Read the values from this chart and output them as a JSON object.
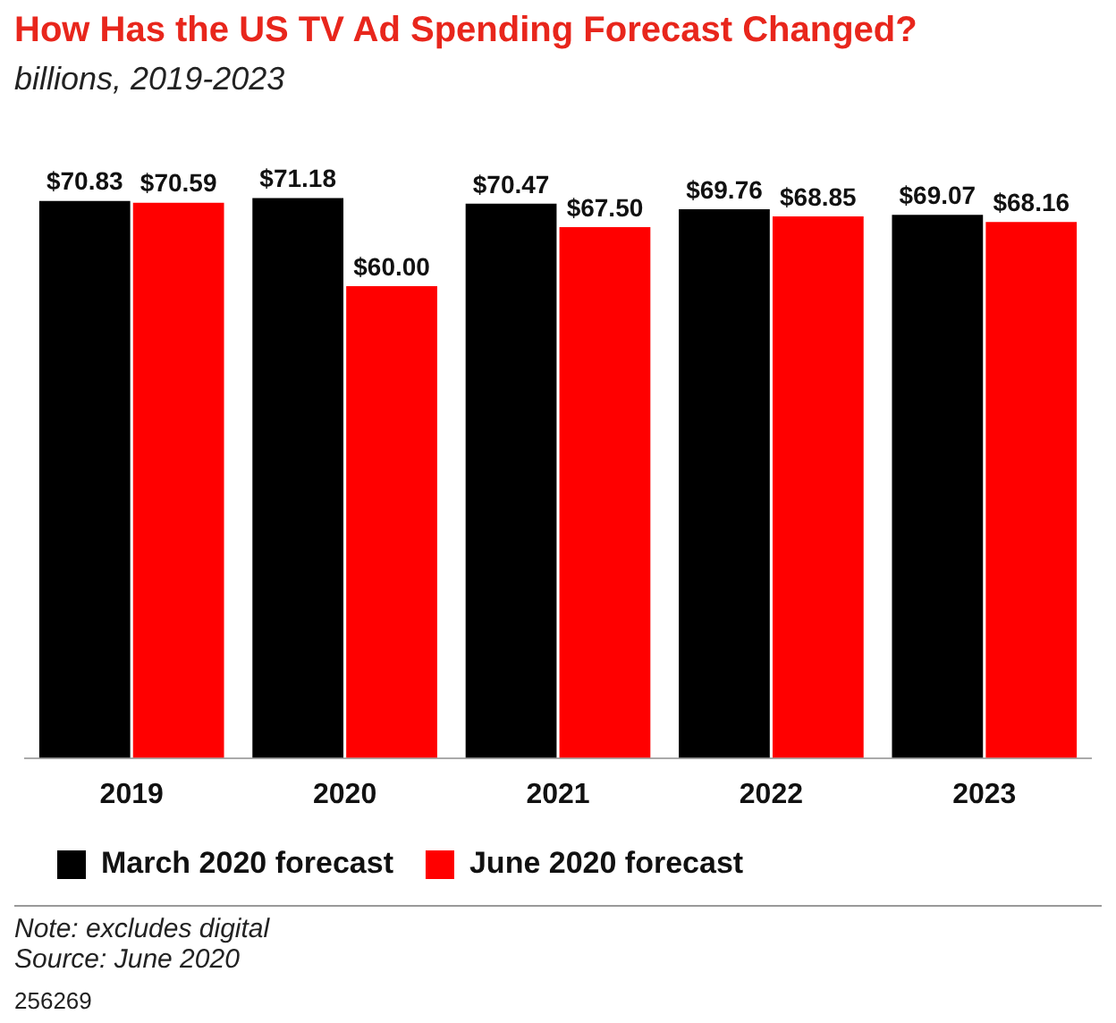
{
  "chart_data": {
    "type": "bar",
    "title": "How Has the US TV Ad Spending Forecast Changed?",
    "subtitle": "billions, 2019-2023",
    "categories": [
      "2019",
      "2020",
      "2021",
      "2022",
      "2023"
    ],
    "series": [
      {
        "name": "March 2020 forecast",
        "color": "#000000",
        "values": [
          70.83,
          71.18,
          70.47,
          69.76,
          69.07
        ],
        "value_labels": [
          "$70.83",
          "$71.18",
          "$70.47",
          "$69.76",
          "$69.07"
        ]
      },
      {
        "name": "June 2020 forecast",
        "color": "#ff0000",
        "values": [
          70.59,
          60.0,
          67.5,
          68.85,
          68.16
        ],
        "value_labels": [
          "$70.59",
          "$60.00",
          "$67.50",
          "$68.85",
          "$68.16"
        ]
      }
    ],
    "tick_labels": "x",
    "grid": false,
    "legend": "bottom left",
    "annotations": [
      "Note: excludes digital",
      "Source: June 2020",
      "256269"
    ]
  }
}
